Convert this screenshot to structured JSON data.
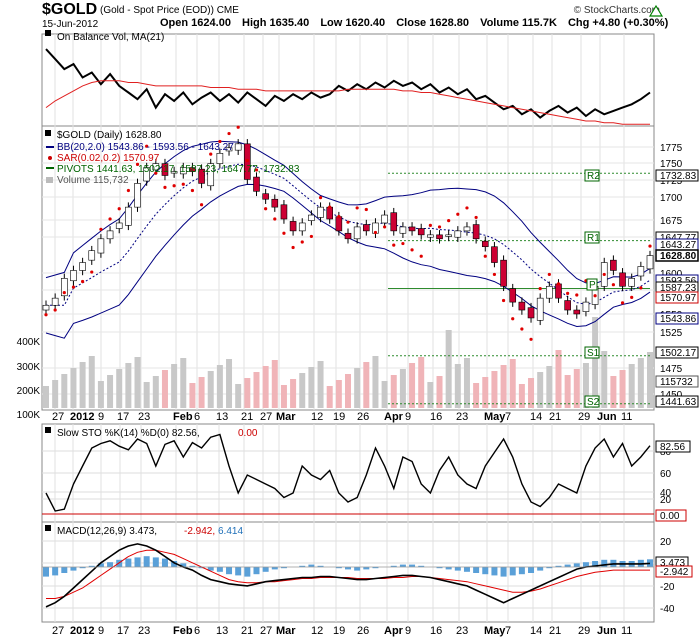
{
  "header": {
    "symbol": "$GOLD",
    "description": "(Gold - Spot Price (EOD)) CME",
    "brand": "© StockCharts.com",
    "date": "15-Jun-2012",
    "open": "Open 1624.00",
    "high": "High 1635.40",
    "low": "Low 1620.40",
    "close": "Close 1628.80",
    "volume": "Volume 115.7K",
    "change": "Chg +4.80 (+0.30%)",
    "change_icon": "up-triangle-icon",
    "change_color": "#008000"
  },
  "obv_panel": {
    "label": "On Balance Vol, MA(21)"
  },
  "price_panel": {
    "legend": [
      {
        "text": "$GOLD (Daily) 1628.80",
        "color": "#000000"
      },
      {
        "text": "BB(20,2.0) 1543.86 - 1593.56 - 1643.27",
        "color": "#000080"
      },
      {
        "text": "SAR(0.02,0.2) 1570.97",
        "color": "#cc0000"
      },
      {
        "text": "PIVOTS 1441.63, 1502.17, 1587.23, 1647.77, 1732.83",
        "color": "#006400"
      },
      {
        "text": "Volume 115,732",
        "color": "#555555"
      }
    ],
    "y_ticks": [
      "1775",
      "1750",
      "1725",
      "1700",
      "1675",
      "1650",
      "1600",
      "1575",
      "1550",
      "1525",
      "1475",
      "1450"
    ],
    "vol_ticks": [
      "400K",
      "300K",
      "200K",
      "100K"
    ],
    "right_tags": [
      {
        "text": "1732.83",
        "color": "#000000"
      },
      {
        "text": "1647.77",
        "color": "#000000"
      },
      {
        "text": "1643.27",
        "color": "#000000"
      },
      {
        "text": "1628.80",
        "color": "#000000"
      },
      {
        "text": "1593.56",
        "color": "#000000"
      },
      {
        "text": "1587.23",
        "color": "#000000"
      },
      {
        "text": "1570.97",
        "color": "#000000"
      },
      {
        "text": "1543.86",
        "color": "#000000"
      },
      {
        "text": "1502.17",
        "color": "#000000"
      },
      {
        "text": "115732",
        "color": "#000000"
      },
      {
        "text": "1441.63",
        "color": "#000000"
      }
    ],
    "pivot_labels": [
      "R2",
      "R1",
      "P",
      "S1",
      "S2"
    ]
  },
  "x_axis": [
    "27",
    "2012",
    "9",
    "17",
    "23",
    "Feb",
    "6",
    "13",
    "21",
    "27",
    "Mar",
    "12",
    "19",
    "26",
    "Apr",
    "9",
    "16",
    "23",
    "May",
    "7",
    "14",
    "21",
    "29",
    "Jun",
    "11"
  ],
  "sto_panel": {
    "label": "Slow STO %K(14) %D(0) 82.56,",
    "label_value": "0.00",
    "y_ticks": [
      "80",
      "60",
      "40",
      "20"
    ],
    "tags": [
      "82.56",
      "0.00"
    ]
  },
  "macd_panel": {
    "label": "MACD(12,26,9) 3.473,",
    "label_signal": "-2.942,",
    "label_hist": "6.414",
    "y_ticks": [
      "20",
      "0",
      "-20",
      "-40"
    ],
    "tags": [
      "3.473",
      "-2.942"
    ]
  },
  "chart_data": {
    "type": "line",
    "title": "$GOLD (Gold - Spot Price (EOD)) CME",
    "close_series": [
      1566,
      1575,
      1600,
      1610,
      1620,
      1635,
      1650,
      1660,
      1670,
      1690,
      1720,
      1740,
      1745,
      1730,
      1735,
      1740,
      1735,
      1720,
      1745,
      1758,
      1765,
      1770,
      1725,
      1710,
      1700,
      1690,
      1675,
      1660,
      1670,
      1680,
      1690,
      1675,
      1660,
      1650,
      1665,
      1660,
      1670,
      1680,
      1660,
      1665,
      1660,
      1655,
      1655,
      1650,
      1655,
      1660,
      1665,
      1650,
      1640,
      1620,
      1590,
      1570,
      1560,
      1550,
      1575,
      1590,
      1575,
      1560,
      1555,
      1570,
      1590,
      1620,
      1610,
      1590,
      1600,
      1615,
      1628.8
    ],
    "pivots": {
      "R2": 1732.83,
      "R1": 1647.77,
      "P": 1587.23,
      "S1": 1502.17,
      "S2": 1441.63
    },
    "bollinger": {
      "upper": 1643.27,
      "middle": 1593.56,
      "lower": 1543.86
    },
    "sar": 1570.97,
    "volume_last": 115732,
    "slow_sto_k": 82.56,
    "slow_sto_d": 0.0,
    "macd": {
      "macd": 3.473,
      "signal": -2.942,
      "histogram": 6.414
    },
    "ylim": [
      1440,
      1790
    ]
  }
}
